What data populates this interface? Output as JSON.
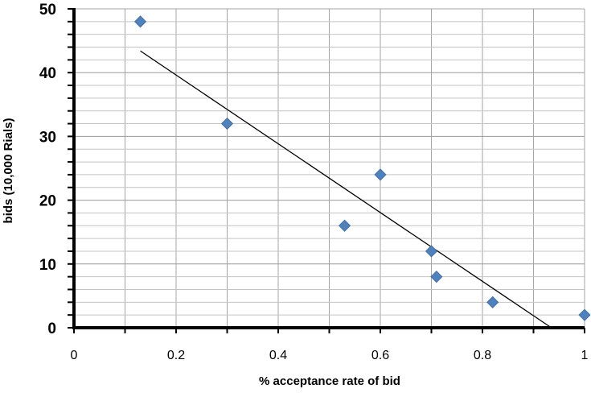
{
  "chart_data": {
    "type": "scatter",
    "xlabel": "% acceptance rate of bid",
    "ylabel": "bids (10,000 Rials)",
    "xlim": [
      0,
      1
    ],
    "ylim": [
      0,
      50
    ],
    "x_ticks": [
      "0",
      "0.2",
      "0.4",
      "0.6",
      "0.8",
      "1"
    ],
    "y_ticks": [
      "0",
      "10",
      "20",
      "30",
      "40",
      "50"
    ],
    "grid": true,
    "legend": "none",
    "marker": "diamond",
    "marker_color": "#4f81bd",
    "points": [
      {
        "x": 0.13,
        "y": 48
      },
      {
        "x": 0.3,
        "y": 32
      },
      {
        "x": 0.53,
        "y": 16
      },
      {
        "x": 0.6,
        "y": 24
      },
      {
        "x": 0.7,
        "y": 12
      },
      {
        "x": 0.71,
        "y": 8
      },
      {
        "x": 0.82,
        "y": 4
      },
      {
        "x": 1.0,
        "y": 2
      }
    ],
    "trendline": {
      "type": "linear",
      "color": "#000000",
      "from": {
        "x": 0.13,
        "y": 43.4
      },
      "to": {
        "x": 0.935,
        "y": 0
      }
    }
  }
}
